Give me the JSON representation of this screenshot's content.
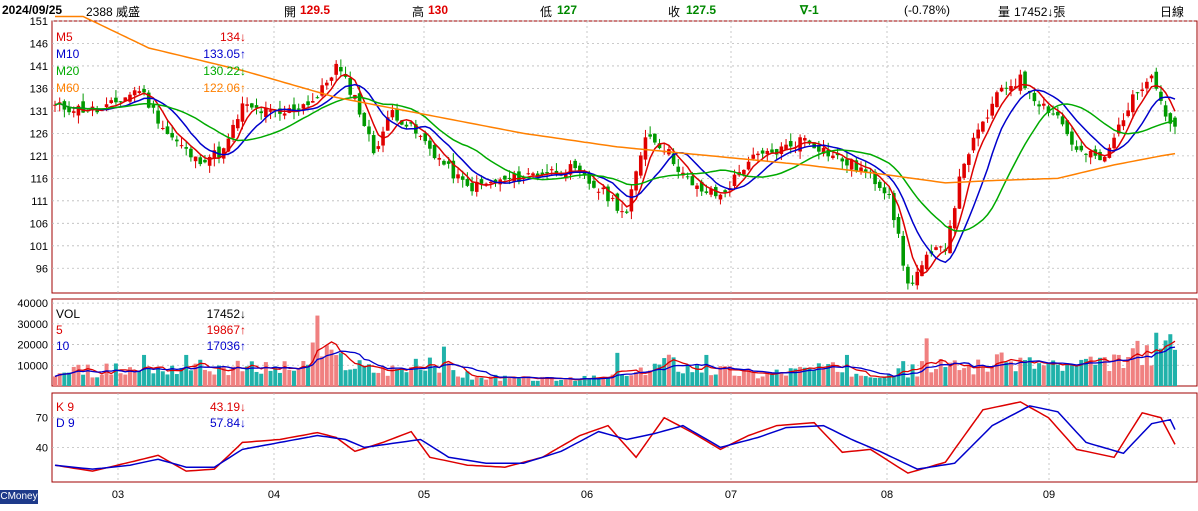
{
  "header": {
    "date": "2024/09/25",
    "stock": "2388 威盛",
    "open_label": "開",
    "open": "129.5",
    "high_label": "高",
    "high": "130",
    "low_label": "低",
    "low": "127",
    "close_label": "收",
    "close": "127.5",
    "change": "∇-1",
    "change_pct": "(-0.78%)",
    "volume_label": "量",
    "volume": "17452↓張",
    "period": "日線"
  },
  "brand": "CMoney",
  "colors": {
    "up": "#e00000",
    "down": "#009900",
    "ma5": "#dd0000",
    "ma10": "#0000cc",
    "ma20": "#00aa00",
    "ma60": "#ff8000",
    "vol_up": "#f08080",
    "vol_dn": "#20b2aa",
    "frame": "#a00000",
    "grid": "#bbbbbb"
  },
  "chart_data": [
    {
      "type": "candlestick",
      "name": "price",
      "y_ticks": [
        151,
        146,
        141,
        136,
        131,
        126,
        121,
        116,
        111,
        106,
        101,
        96
      ],
      "ylim": [
        90.5,
        151
      ],
      "x_month_labels": [
        "03",
        "04",
        "05",
        "06",
        "07",
        "08",
        "09"
      ],
      "legend": [
        {
          "label": "M5",
          "value": "134↓",
          "color": "#dd0000"
        },
        {
          "label": "M10",
          "value": "133.05↑",
          "color": "#0000cc"
        },
        {
          "label": "M20",
          "value": "130.22↓",
          "color": "#00aa00"
        },
        {
          "label": "M60",
          "value": "122.06↑",
          "color": "#ff8000"
        }
      ],
      "close_anchors": [
        [
          0,
          132
        ],
        [
          10,
          131
        ],
        [
          18,
          136
        ],
        [
          24,
          126
        ],
        [
          30,
          120
        ],
        [
          36,
          122
        ],
        [
          40,
          132
        ],
        [
          48,
          130
        ],
        [
          56,
          134
        ],
        [
          60,
          141
        ],
        [
          64,
          134
        ],
        [
          68,
          122
        ],
        [
          72,
          131
        ],
        [
          78,
          125
        ],
        [
          84,
          118
        ],
        [
          88,
          114
        ],
        [
          94,
          115
        ],
        [
          102,
          117
        ],
        [
          110,
          118
        ],
        [
          118,
          112
        ],
        [
          122,
          108
        ],
        [
          126,
          126
        ],
        [
          130,
          123
        ],
        [
          136,
          114
        ],
        [
          142,
          112
        ],
        [
          148,
          120
        ],
        [
          154,
          122
        ],
        [
          160,
          125
        ],
        [
          166,
          121
        ],
        [
          172,
          118
        ],
        [
          178,
          113
        ],
        [
          182,
          92
        ],
        [
          186,
          98
        ],
        [
          190,
          101
        ],
        [
          194,
          120
        ],
        [
          198,
          128
        ],
        [
          202,
          136
        ],
        [
          206,
          138
        ],
        [
          210,
          133
        ],
        [
          214,
          130
        ],
        [
          218,
          122
        ],
        [
          224,
          120
        ],
        [
          228,
          130
        ],
        [
          232,
          137
        ],
        [
          234,
          140
        ],
        [
          237,
          130
        ],
        [
          239,
          127.5
        ]
      ],
      "ma60_anchors": [
        [
          0,
          155
        ],
        [
          20,
          145
        ],
        [
          40,
          140
        ],
        [
          60,
          134
        ],
        [
          80,
          130
        ],
        [
          100,
          126
        ],
        [
          120,
          123
        ],
        [
          140,
          121
        ],
        [
          160,
          119
        ],
        [
          176,
          117
        ],
        [
          190,
          115
        ],
        [
          200,
          115.5
        ],
        [
          214,
          116
        ],
        [
          226,
          119
        ],
        [
          236,
          121
        ],
        [
          239,
          121.5
        ]
      ],
      "ohlc": [
        [
          0,
          null,
          null,
          null,
          132
        ],
        [
          1,
          null,
          null,
          null,
          133.5
        ],
        [
          2,
          null,
          null,
          null,
          131
        ],
        [
          3,
          null,
          null,
          null,
          130.5
        ],
        [
          4,
          null,
          null,
          null,
          132
        ]
      ]
    },
    {
      "type": "bar",
      "name": "volume",
      "y_ticks": [
        40000,
        30000,
        20000,
        10000
      ],
      "ylim": [
        0,
        42000
      ],
      "legend": [
        {
          "label": "VOL",
          "value": "17452↓",
          "color": "#000000"
        },
        {
          "label": "5",
          "value": "19867↑",
          "color": "#dd0000"
        },
        {
          "label": "10",
          "value": "17036↑",
          "color": "#0000cc"
        }
      ],
      "anchors": [
        [
          0,
          7000
        ],
        [
          20,
          8000
        ],
        [
          28,
          9000
        ],
        [
          40,
          8500
        ],
        [
          54,
          9000
        ],
        [
          58,
          14000
        ],
        [
          62,
          12000
        ],
        [
          68,
          8000
        ],
        [
          82,
          10000
        ],
        [
          90,
          4000
        ],
        [
          110,
          3000
        ],
        [
          124,
          5000
        ],
        [
          130,
          12000
        ],
        [
          140,
          8000
        ],
        [
          150,
          6000
        ],
        [
          160,
          8000
        ],
        [
          170,
          8000
        ],
        [
          180,
          6000
        ],
        [
          186,
          9000
        ],
        [
          196,
          10000
        ],
        [
          206,
          12000
        ],
        [
          216,
          9000
        ],
        [
          226,
          11000
        ],
        [
          234,
          18000
        ],
        [
          239,
          17452
        ]
      ],
      "spikes": [
        [
          19,
          15000
        ],
        [
          28,
          15000
        ],
        [
          55,
          21000
        ],
        [
          56,
          34000
        ],
        [
          83,
          19000
        ],
        [
          120,
          16000
        ],
        [
          139,
          15000
        ],
        [
          169,
          15000
        ],
        [
          181,
          12000
        ],
        [
          186,
          23000
        ],
        [
          227,
          15000
        ],
        [
          236,
          18000
        ],
        [
          237,
          22000
        ],
        [
          238,
          25000
        ]
      ]
    },
    {
      "type": "line",
      "name": "kd",
      "y_ticks": [
        70,
        40
      ],
      "ylim": [
        5,
        95
      ],
      "legend": [
        {
          "label": "K 9",
          "value": "43.19↓",
          "color": "#dd0000"
        },
        {
          "label": "D 9",
          "value": "57.84↓",
          "color": "#0000cc"
        }
      ],
      "k_anchors": [
        [
          0,
          22
        ],
        [
          8,
          16
        ],
        [
          16,
          25
        ],
        [
          22,
          32
        ],
        [
          28,
          16
        ],
        [
          34,
          18
        ],
        [
          40,
          45
        ],
        [
          48,
          48
        ],
        [
          56,
          55
        ],
        [
          60,
          50
        ],
        [
          64,
          36
        ],
        [
          70,
          45
        ],
        [
          76,
          56
        ],
        [
          80,
          30
        ],
        [
          88,
          22
        ],
        [
          96,
          20
        ],
        [
          104,
          30
        ],
        [
          112,
          52
        ],
        [
          118,
          62
        ],
        [
          124,
          30
        ],
        [
          130,
          70
        ],
        [
          136,
          55
        ],
        [
          142,
          38
        ],
        [
          148,
          52
        ],
        [
          154,
          62
        ],
        [
          162,
          65
        ],
        [
          168,
          35
        ],
        [
          174,
          38
        ],
        [
          182,
          14
        ],
        [
          190,
          25
        ],
        [
          198,
          78
        ],
        [
          206,
          86
        ],
        [
          212,
          70
        ],
        [
          218,
          38
        ],
        [
          226,
          30
        ],
        [
          232,
          75
        ],
        [
          236,
          70
        ],
        [
          239,
          43
        ]
      ],
      "d_anchors": [
        [
          0,
          22
        ],
        [
          8,
          18
        ],
        [
          16,
          22
        ],
        [
          22,
          28
        ],
        [
          28,
          20
        ],
        [
          34,
          20
        ],
        [
          40,
          38
        ],
        [
          48,
          45
        ],
        [
          56,
          52
        ],
        [
          62,
          48
        ],
        [
          66,
          40
        ],
        [
          72,
          44
        ],
        [
          78,
          48
        ],
        [
          84,
          30
        ],
        [
          92,
          24
        ],
        [
          100,
          24
        ],
        [
          108,
          36
        ],
        [
          116,
          56
        ],
        [
          122,
          48
        ],
        [
          128,
          54
        ],
        [
          134,
          62
        ],
        [
          142,
          40
        ],
        [
          150,
          50
        ],
        [
          156,
          60
        ],
        [
          164,
          62
        ],
        [
          170,
          48
        ],
        [
          176,
          36
        ],
        [
          184,
          18
        ],
        [
          192,
          24
        ],
        [
          200,
          62
        ],
        [
          208,
          82
        ],
        [
          214,
          76
        ],
        [
          220,
          45
        ],
        [
          228,
          34
        ],
        [
          234,
          64
        ],
        [
          238,
          68
        ],
        [
          239,
          58
        ]
      ]
    }
  ]
}
